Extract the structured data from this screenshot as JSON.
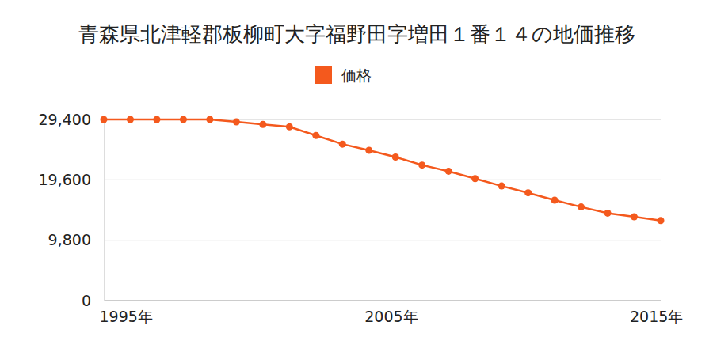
{
  "chart_data": {
    "type": "line",
    "title": "青森県北津軽郡板柳町大字福野田字増田１番１４の地価推移",
    "x": [
      1995,
      1996,
      1997,
      1998,
      1999,
      2000,
      2001,
      2002,
      2003,
      2004,
      2005,
      2006,
      2007,
      2008,
      2009,
      2010,
      2011,
      2012,
      2013,
      2014,
      2015,
      2016
    ],
    "series": [
      {
        "name": "価格",
        "color": "#f4591d",
        "marker": "circle",
        "values": [
          29400,
          29400,
          29400,
          29400,
          29400,
          29000,
          28600,
          28200,
          26800,
          25400,
          24400,
          23300,
          22000,
          21000,
          19800,
          18600,
          17500,
          16300,
          15200,
          14200,
          13600,
          13000
        ]
      }
    ],
    "xlim": [
      1995,
      2016
    ],
    "xticks": [
      {
        "value": 1995,
        "label": "1995年"
      },
      {
        "value": 2005,
        "label": "2005年"
      },
      {
        "value": 2015,
        "label": "2015年"
      }
    ],
    "ylim": [
      0,
      29400
    ],
    "yticks": [
      0,
      {
        "value": 9800,
        "label": "9,800"
      },
      {
        "value": 19600,
        "label": "19,600"
      },
      {
        "value": 29400,
        "label": "29,400"
      }
    ],
    "grid": true,
    "legend": "top"
  }
}
